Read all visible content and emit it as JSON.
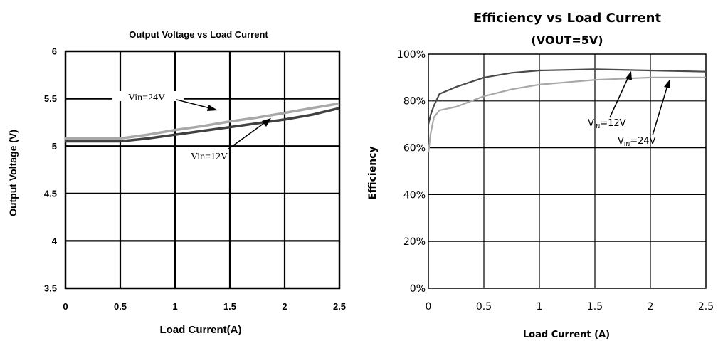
{
  "chart_data": [
    {
      "type": "line",
      "title": "Output Voltage vs Load Current",
      "subtitle": "",
      "xlabel": "Load Current(A)",
      "ylabel": "Output Voltage (V)",
      "xlim": [
        0,
        2.5
      ],
      "ylim": [
        3.5,
        6
      ],
      "xticks": [
        "0",
        "0.5",
        "1",
        "1.5",
        "2",
        "2.5"
      ],
      "yticks": [
        "3.5",
        "4",
        "4.5",
        "5",
        "5.5",
        "6"
      ],
      "grid": true,
      "series": [
        {
          "name": "Vin=24V",
          "color": "#a8a8a8",
          "x": [
            0,
            0.25,
            0.5,
            0.75,
            1.0,
            1.25,
            1.5,
            1.75,
            2.0,
            2.25,
            2.5
          ],
          "y": [
            5.08,
            5.08,
            5.08,
            5.12,
            5.17,
            5.21,
            5.26,
            5.3,
            5.35,
            5.4,
            5.45
          ]
        },
        {
          "name": "Vin=12V",
          "color": "#404040",
          "x": [
            0,
            0.25,
            0.5,
            0.75,
            1.0,
            1.25,
            1.5,
            1.75,
            2.0,
            2.25,
            2.5
          ],
          "y": [
            5.05,
            5.05,
            5.05,
            5.08,
            5.12,
            5.16,
            5.2,
            5.24,
            5.28,
            5.33,
            5.4
          ]
        }
      ],
      "annotations": [
        "Vin=24V",
        "Vin=12V"
      ]
    },
    {
      "type": "line",
      "title": "Efficiency vs Load Current",
      "subtitle": "(VOUT=5V)",
      "xlabel": "Load Current (A)",
      "ylabel": "Efficiency",
      "xlim": [
        0,
        2.5
      ],
      "ylim": [
        0,
        100
      ],
      "xticks": [
        "0",
        "0.5",
        "1",
        "1.5",
        "2",
        "2.5"
      ],
      "yticks": [
        "0%",
        "20%",
        "40%",
        "60%",
        "80%",
        "100%"
      ],
      "grid": true,
      "series": [
        {
          "name": "VIN=12V",
          "color": "#4a4a4a",
          "x": [
            0,
            0.02,
            0.05,
            0.1,
            0.15,
            0.25,
            0.5,
            0.75,
            1.0,
            1.5,
            2.0,
            2.5
          ],
          "y": [
            70,
            74,
            78,
            83,
            84,
            86,
            90,
            92,
            93,
            93.5,
            93,
            92.5
          ]
        },
        {
          "name": "VIN=24V",
          "color": "#a8a8a8",
          "x": [
            0,
            0.02,
            0.05,
            0.1,
            0.15,
            0.2,
            0.25,
            0.5,
            0.75,
            1.0,
            1.5,
            2.0,
            2.5
          ],
          "y": [
            58,
            66,
            73,
            76,
            76.5,
            77,
            77.5,
            82,
            85,
            87,
            89,
            90,
            90
          ]
        }
      ],
      "annotations": [
        {
          "prefix": "V",
          "sub": "IN",
          "suffix": "=12V"
        },
        {
          "prefix": "V",
          "sub": "IN",
          "suffix": "=24V"
        }
      ]
    }
  ]
}
